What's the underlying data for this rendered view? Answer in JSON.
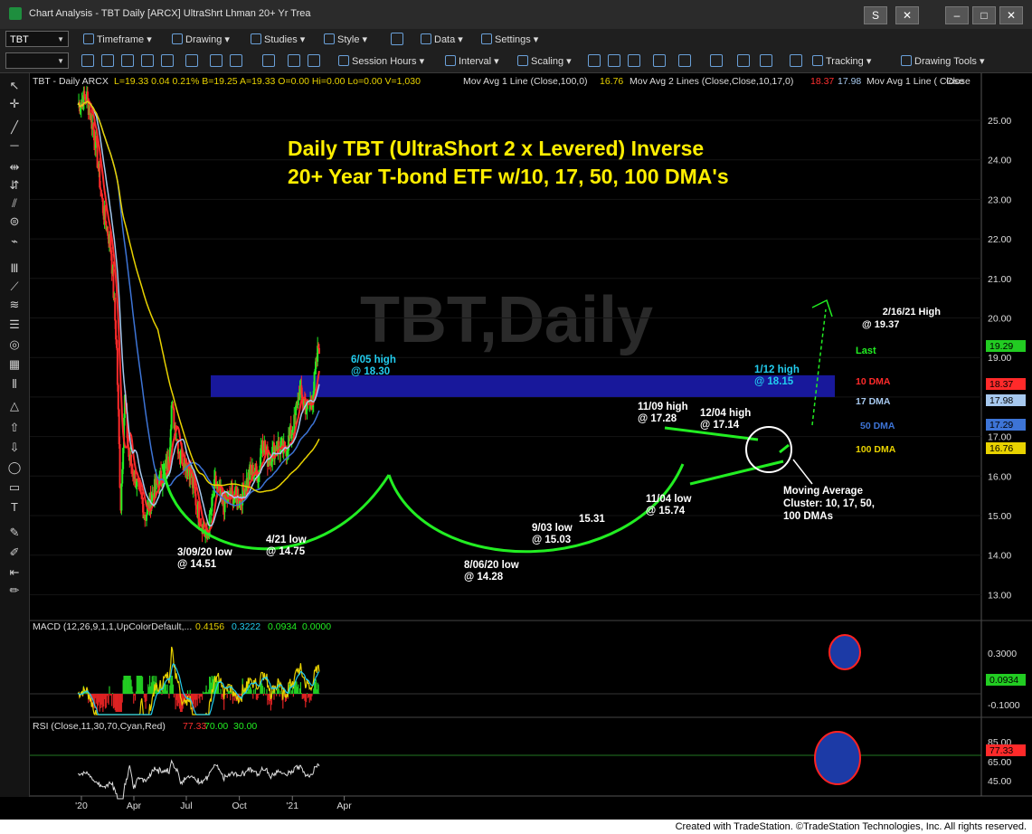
{
  "window": {
    "title": "Chart Analysis - TBT Daily [ARCX] UltraShrt Lhman 20+ Yr Trea"
  },
  "toolbar1": {
    "symbol": "TBT",
    "items": [
      "Timeframe",
      "Drawing",
      "Studies",
      "Style",
      "Data",
      "Settings"
    ]
  },
  "toolbar2": {
    "items": [
      "Session Hours",
      "Interval",
      "Scaling",
      "Tracking",
      "Drawing Tools"
    ]
  },
  "header_info": "TBT - Daily ARCX",
  "header_quote": "L=19.33  0.04  0.21%  B=19.25  A=19.33  O=0.00  Hi=0.00  Lo=0.00  V=1,030",
  "header_ma1": "Mov Avg 1 Line (Close,100,0)",
  "header_ma1_val": "16.76",
  "header_ma2": "Mov Avg 2 Lines (Close,Close,10,17,0)",
  "header_ma2_val1": "18.37",
  "header_ma2_val2": "17.98",
  "header_ma3": "Mov Avg 1 Line ( Close",
  "watermark": "TBT,Daily",
  "chart_data": {
    "type": "line",
    "title": "Daily TBT (UltraShort 2 x Levered) Inverse",
    "subtitle": "20+ Year T-bond ETF w/10, 17, 50, 100 DMA's",
    "y_ticks": [
      "25.00",
      "24.00",
      "23.00",
      "22.00",
      "21.00",
      "20.00",
      "19.00",
      "18.00",
      "17.00",
      "16.00",
      "15.00",
      "14.00",
      "13.00"
    ],
    "y_range": [
      12.5,
      25.9
    ],
    "x_ticks": [
      "'20",
      "Apr",
      "Jul",
      "Oct",
      "'21",
      "Apr"
    ],
    "price_series": {
      "name": "TBT",
      "x": [
        "2019-12-26",
        "2020-01-10",
        "2020-01-24",
        "2020-02-07",
        "2020-02-21",
        "2020-03-02",
        "2020-03-09",
        "2020-03-16",
        "2020-03-23",
        "2020-04-06",
        "2020-04-21",
        "2020-05-05",
        "2020-05-20",
        "2020-06-01",
        "2020-06-05",
        "2020-06-19",
        "2020-07-06",
        "2020-07-20",
        "2020-08-06",
        "2020-08-20",
        "2020-09-03",
        "2020-09-17",
        "2020-10-02",
        "2020-10-20",
        "2020-11-04",
        "2020-11-09",
        "2020-11-20",
        "2020-12-04",
        "2020-12-18",
        "2021-01-04",
        "2021-01-12",
        "2021-01-26",
        "2021-02-05",
        "2021-02-16",
        "2021-02-17"
      ],
      "close": [
        25.4,
        25.6,
        24.6,
        22.8,
        21.8,
        19.3,
        15.2,
        18.0,
        16.5,
        15.8,
        15.0,
        15.6,
        16.0,
        16.4,
        17.8,
        16.6,
        16.2,
        15.2,
        14.4,
        15.8,
        15.3,
        15.5,
        15.4,
        16.1,
        16.1,
        17.0,
        16.4,
        16.8,
        16.6,
        17.3,
        18.15,
        17.7,
        18.0,
        19.37,
        19.29
      ]
    },
    "series": [
      {
        "name": "10 DMA",
        "value": "18.37",
        "color": "#ff2a2a"
      },
      {
        "name": "17 DMA",
        "value": "17.98",
        "color": "#a6c8ee"
      },
      {
        "name": "50 DMA",
        "value": "17.29",
        "color": "#3d74d6"
      },
      {
        "name": "100 DMA",
        "value": "16.76",
        "color": "#e8d200"
      }
    ],
    "last": {
      "label": "Last",
      "value": "19.29"
    },
    "resistance_zone": [
      18.0,
      18.55
    ],
    "annotations": [
      {
        "text": "3/09/20 low",
        "sub": "@ 14.51"
      },
      {
        "text": "4/21 low",
        "sub": "@ 14.75"
      },
      {
        "text": "6/05 high",
        "sub": "@ 18.30"
      },
      {
        "text": "8/06/20 low",
        "sub": "@ 14.28"
      },
      {
        "text": "9/03 low",
        "sub": "@ 15.03"
      },
      {
        "text": "15.31",
        "sub": ""
      },
      {
        "text": "11/09 high",
        "sub": "@ 17.28"
      },
      {
        "text": "11/04 low",
        "sub": "@ 15.74"
      },
      {
        "text": "12/04 high",
        "sub": "@ 17.14"
      },
      {
        "text": "1/12 high",
        "sub": "@ 18.15"
      },
      {
        "text": "2/16/21 High",
        "sub": "@ 19.37"
      }
    ],
    "cluster_note": [
      "Moving Average",
      "Cluster: 10, 17, 50,",
      "100 DMAs"
    ],
    "macd": {
      "label": "MACD (12,26,9,1,1,UpColorDefault,...",
      "values": [
        "0.4156",
        "0.3222",
        "0.0934",
        "0.0000"
      ],
      "ticks": [
        "0.3000",
        "-0.1000"
      ],
      "last": "0.0934"
    },
    "rsi": {
      "label": "RSI (Close,11,30,70,Cyan,Red)",
      "values": [
        "77.33",
        "70.00",
        "30.00"
      ],
      "ticks": [
        "85.00",
        "65.00",
        "45.00"
      ],
      "last": "77.33"
    }
  },
  "footer": "Created with TradeStation. ©TradeStation Technologies, Inc. All rights reserved."
}
